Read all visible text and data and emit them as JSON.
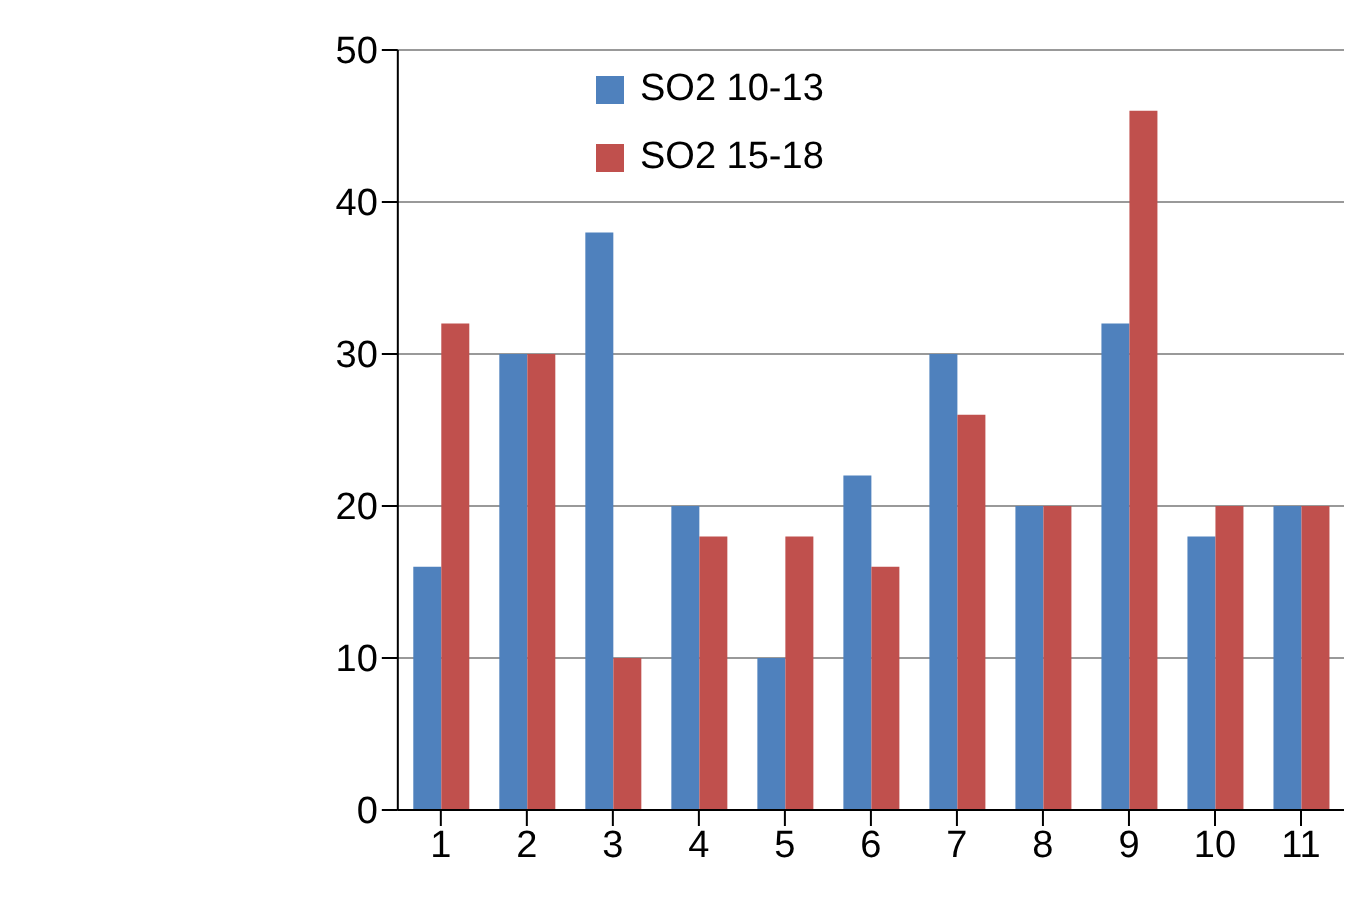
{
  "chart_data": {
    "type": "bar",
    "categories": [
      "1",
      "2",
      "3",
      "4",
      "5",
      "6",
      "7",
      "8",
      "9",
      "10",
      "11"
    ],
    "series": [
      {
        "name": "SO2 10-13",
        "color": "#4f81bd",
        "values": [
          16,
          30,
          38,
          20,
          10,
          22,
          30,
          20,
          32,
          18,
          20
        ]
      },
      {
        "name": "SO2 15-18",
        "color": "#c0504d",
        "values": [
          32,
          30,
          10,
          18,
          18,
          16,
          26,
          20,
          46,
          20,
          20
        ]
      }
    ],
    "ylim": [
      0,
      50
    ],
    "yticks": [
      0,
      10,
      20,
      30,
      40,
      50
    ],
    "grid": "y",
    "legend": "top"
  }
}
